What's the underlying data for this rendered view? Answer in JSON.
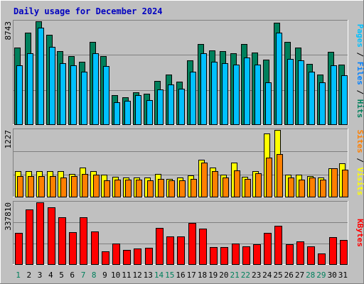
{
  "title": "Daily usage for December 2024",
  "colors": {
    "background": "#c0c0c0",
    "title": "#0000c0",
    "hits": "#00805c",
    "files": "#0080ff",
    "pages": "#00c0ff",
    "visits": "#ffff00",
    "sites": "#ff8000",
    "kbytes": "#ff0000",
    "weekend_label": "#00805c"
  },
  "chart_data": [
    {
      "type": "bar",
      "name": "hits-files-pages",
      "y_max_label": "8743",
      "legend": [
        "Pages",
        "/",
        "Files",
        "/",
        "Hits"
      ],
      "x": [
        1,
        2,
        3,
        4,
        5,
        6,
        7,
        8,
        9,
        10,
        11,
        12,
        13,
        14,
        15,
        16,
        17,
        18,
        19,
        20,
        21,
        22,
        23,
        24,
        25,
        26,
        27,
        28,
        29,
        30,
        31
      ],
      "ylim": [
        0,
        8743
      ],
      "series": [
        {
          "name": "Hits",
          "values": [
            6500,
            7800,
            8743,
            7600,
            6200,
            5800,
            5300,
            7000,
            5800,
            2500,
            2300,
            2700,
            2600,
            3700,
            4200,
            3600,
            5400,
            6800,
            6300,
            6200,
            6000,
            6800,
            6100,
            5500,
            8600,
            7000,
            6500,
            5100,
            4200,
            6150,
            5050
          ]
        },
        {
          "name": "Files",
          "values": [
            5000,
            6000,
            8200,
            6600,
            5200,
            5000,
            4450,
            6050,
            4950,
            1870,
            1980,
            2470,
            2020,
            2950,
            3400,
            3030,
            4450,
            6050,
            5300,
            5200,
            5050,
            5670,
            5070,
            3580,
            7800,
            5570,
            5450,
            4450,
            3580,
            5000,
            4150
          ]
        },
        {
          "name": "Pages",
          "values": [
            5000,
            6000,
            8200,
            6600,
            5200,
            5000,
            4450,
            6050,
            4950,
            1870,
            1980,
            2470,
            2020,
            2950,
            3400,
            3030,
            4450,
            6050,
            5300,
            5200,
            5050,
            5670,
            5070,
            3580,
            7800,
            5570,
            5450,
            4450,
            3580,
            5000,
            4150
          ]
        }
      ]
    },
    {
      "type": "bar",
      "name": "visits-sites",
      "y_max_label": "1227",
      "legend": [
        "Sites",
        "/",
        "Visits"
      ],
      "x": [
        1,
        2,
        3,
        4,
        5,
        6,
        7,
        8,
        9,
        10,
        11,
        12,
        13,
        14,
        15,
        16,
        17,
        18,
        19,
        20,
        21,
        22,
        23,
        24,
        25,
        26,
        27,
        28,
        29,
        30,
        31
      ],
      "ylim": [
        0,
        1227
      ],
      "series": [
        {
          "name": "Visits",
          "values": [
            470,
            470,
            470,
            470,
            470,
            420,
            540,
            470,
            400,
            360,
            350,
            350,
            350,
            420,
            330,
            350,
            390,
            680,
            530,
            400,
            630,
            360,
            470,
            1160,
            1227,
            400,
            400,
            380,
            350,
            520,
            620
          ]
        },
        {
          "name": "Sites",
          "values": [
            380,
            380,
            380,
            380,
            350,
            380,
            420,
            400,
            300,
            310,
            310,
            310,
            300,
            330,
            300,
            300,
            330,
            630,
            470,
            350,
            480,
            330,
            430,
            720,
            780,
            350,
            310,
            350,
            310,
            520,
            500
          ]
        }
      ]
    },
    {
      "type": "bar",
      "name": "kbytes",
      "y_max_label": "337810",
      "legend": [
        "KBytes"
      ],
      "x": [
        1,
        2,
        3,
        4,
        5,
        6,
        7,
        8,
        9,
        10,
        11,
        12,
        13,
        14,
        15,
        16,
        17,
        18,
        19,
        20,
        21,
        22,
        23,
        24,
        25,
        26,
        27,
        28,
        29,
        30,
        31
      ],
      "ylim": [
        0,
        337810
      ],
      "series": [
        {
          "name": "KBytes",
          "values": [
            172000,
            298000,
            337810,
            312000,
            258000,
            175000,
            258000,
            178000,
            69000,
            112000,
            77000,
            85000,
            88000,
            199000,
            153000,
            153000,
            224000,
            195000,
            93000,
            93000,
            112000,
            97000,
            107000,
            172000,
            210000,
            108000,
            126000,
            98000,
            59000,
            149000,
            131000
          ]
        }
      ]
    }
  ],
  "x_labels": [
    "1",
    "2",
    "3",
    "4",
    "5",
    "6",
    "7",
    "8",
    "9",
    "10",
    "11",
    "12",
    "13",
    "14",
    "15",
    "16",
    "17",
    "18",
    "19",
    "20",
    "21",
    "22",
    "23",
    "24",
    "25",
    "26",
    "27",
    "28",
    "29",
    "30",
    "31"
  ],
  "weekend_days": [
    "1",
    "7",
    "8",
    "14",
    "15",
    "21",
    "22",
    "28",
    "29"
  ]
}
